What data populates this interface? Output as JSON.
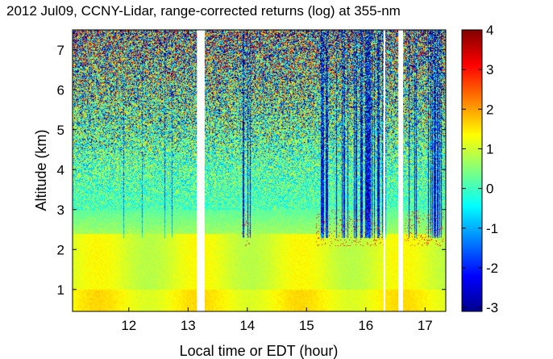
{
  "chart_data": {
    "type": "heatmap",
    "title": "2012 Jul09, CCNY-Lidar, range-corrected returns (log) at 355-nm",
    "xlabel": "Local time or EDT (hour)",
    "ylabel": "Altitude (km)",
    "xlim": [
      11.05,
      17.35
    ],
    "ylim": [
      0.45,
      7.5
    ],
    "x_ticks": [
      12,
      13,
      14,
      15,
      16,
      17
    ],
    "y_ticks": [
      1,
      2,
      3,
      4,
      5,
      6,
      7
    ],
    "colorbar": {
      "label": "",
      "range": [
        -3.1,
        4
      ],
      "ticks": [
        4,
        3,
        2,
        1,
        0,
        -1,
        -2,
        -3
      ],
      "colormap": "jet"
    },
    "data_gaps_hours": [
      [
        13.15,
        13.28
      ],
      [
        16.3,
        16.33
      ],
      [
        16.55,
        16.63
      ]
    ],
    "features": {
      "boundary_layer_top_km": 2.5,
      "cloud_layer_km": [
        2.1,
        3.0
      ],
      "cloud_times_hours": [
        [
          13.9,
          14.05
        ],
        [
          15.15,
          16.3
        ],
        [
          16.65,
          17.3
        ]
      ]
    }
  }
}
